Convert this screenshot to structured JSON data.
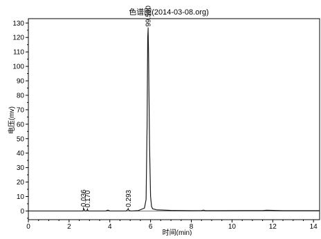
{
  "chart_data": {
    "type": "line",
    "title": "色谱图(2014-03-08.org)",
    "xlabel": "时间(min)",
    "ylabel": "电压(mv)",
    "xlim": [
      0,
      14.3
    ],
    "ylim": [
      -6,
      133
    ],
    "x_ticks": [
      "0",
      "2",
      "4",
      "6",
      "8",
      "10",
      "12",
      "14"
    ],
    "x_tick_values": [
      0,
      2,
      4,
      6,
      8,
      10,
      12,
      14
    ],
    "y_ticks": [
      "0",
      "10",
      "20",
      "30",
      "40",
      "50",
      "60",
      "70",
      "80",
      "90",
      "100",
      "110",
      "120",
      "130"
    ],
    "y_tick_values": [
      0,
      10,
      20,
      30,
      40,
      50,
      60,
      70,
      80,
      90,
      100,
      110,
      120,
      130
    ],
    "grid": false,
    "series": [
      {
        "color": "#1a1a1a",
        "x": [
          0,
          1.0,
          2.0,
          2.5,
          2.68,
          2.72,
          2.78,
          2.85,
          2.9,
          2.95,
          3.02,
          3.4,
          3.8,
          3.9,
          4.0,
          4.5,
          4.8,
          4.9,
          4.95,
          5.05,
          5.4,
          5.7,
          5.78,
          5.83,
          5.86,
          5.88,
          5.9,
          5.95,
          6.0,
          6.05,
          6.1,
          6.3,
          7.0,
          8.0,
          8.5,
          8.6,
          8.7,
          9.5,
          10.5,
          11.5,
          11.7,
          12.5,
          13.5,
          14.3
        ],
        "y": [
          0,
          0,
          0,
          0,
          0,
          1.5,
          0,
          0,
          0.9,
          0,
          0,
          0,
          0,
          0.6,
          0,
          0,
          0,
          1.2,
          0.3,
          0,
          0.3,
          2,
          8,
          60,
          120,
          126,
          110,
          45,
          10,
          3,
          1.5,
          0.8,
          0.4,
          0.2,
          0.3,
          0.6,
          0.2,
          0.2,
          0.3,
          0.3,
          0.5,
          0.2,
          0.2,
          0.2
        ]
      }
    ],
    "baseline_color": "#d24a4a",
    "annotations": [
      {
        "label": "0.036",
        "x": 2.7,
        "y": 1.5
      },
      {
        "label": "0.170",
        "x": 2.9,
        "y": 0.9
      },
      {
        "label": "0.293",
        "x": 4.9,
        "y": 1.2
      },
      {
        "label": "99.500",
        "x": 5.88,
        "y": 126
      }
    ]
  }
}
